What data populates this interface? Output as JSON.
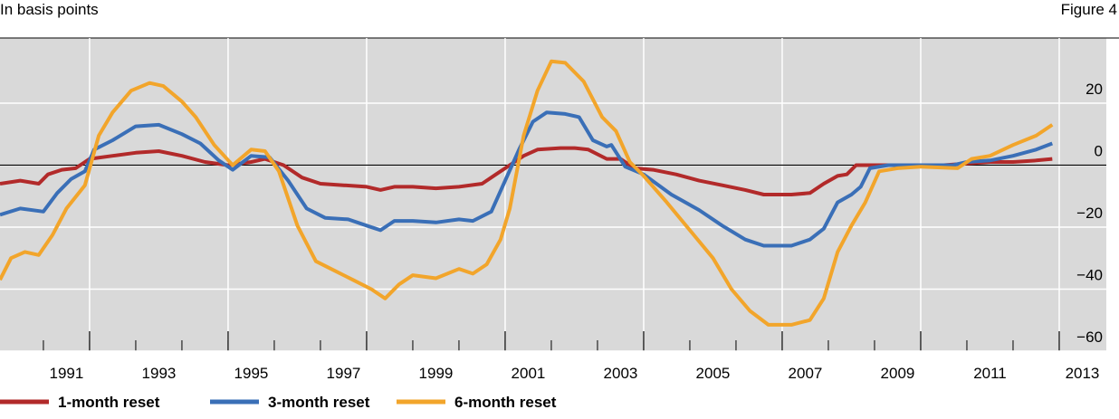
{
  "chart_data": {
    "type": "line",
    "subtitle": "In basis points",
    "figure_label": "Figure 4",
    "xlim": [
      1990.06,
      2014.02
    ],
    "ylim": [
      -60,
      41
    ],
    "yticks": [
      20,
      0,
      {
        "value": -20,
        "label": "−20"
      },
      {
        "value": -40,
        "label": "−40"
      },
      {
        "value": -60,
        "label": "−60"
      }
    ],
    "xticks": [
      {
        "value": 1991.5,
        "label": "1991"
      },
      {
        "value": 1993.5,
        "label": "1993"
      },
      {
        "value": 1995.5,
        "label": "1995"
      },
      {
        "value": 1997.5,
        "label": "1997"
      },
      {
        "value": 1999.5,
        "label": "1999"
      },
      {
        "value": 2001.5,
        "label": "2001"
      },
      {
        "value": 2003.5,
        "label": "2003"
      },
      {
        "value": 2005.5,
        "label": "2005"
      },
      {
        "value": 2007.5,
        "label": "2007"
      },
      {
        "value": 2009.5,
        "label": "2009"
      },
      {
        "value": 2011.5,
        "label": "2011"
      },
      {
        "value": 2013.5,
        "label": "2013"
      }
    ],
    "xminorticks": [
      1991,
      1992,
      1993,
      1994,
      1995,
      1996,
      1997,
      1998,
      1999,
      2000,
      2001,
      2002,
      2003,
      2004,
      2005,
      2006,
      2007,
      2008,
      2009,
      2010,
      2011,
      2012,
      2013
    ],
    "xgrid": [
      1992,
      1995,
      1998,
      2001,
      2004,
      2007,
      2010,
      2013
    ],
    "grid": true,
    "zero_line": 0,
    "series": [
      {
        "name": "1-month reset",
        "color": "#b22a2a",
        "x": [
          1990.06,
          1990.5,
          1990.9,
          1991.1,
          1991.4,
          1991.7,
          1992.0,
          1992.5,
          1993.0,
          1993.5,
          1994.0,
          1994.5,
          1995.0,
          1995.5,
          1995.8,
          1996.2,
          1996.6,
          1997.0,
          1997.5,
          1998.0,
          1998.3,
          1998.6,
          1999.0,
          1999.5,
          2000.0,
          2000.5,
          2000.8,
          2001.1,
          2001.4,
          2001.7,
          2002.2,
          2002.5,
          2002.8,
          2003.2,
          2003.5,
          2003.8,
          2004.2,
          2004.7,
          2005.2,
          2005.7,
          2006.2,
          2006.6,
          2007.2,
          2007.6,
          2007.9,
          2008.2,
          2008.4,
          2008.6,
          2009.0,
          2010.0,
          2010.5,
          2011.0,
          2011.5,
          2012.0,
          2012.5,
          2012.85
        ],
        "values": [
          -6,
          -5,
          -6,
          -3,
          -1.5,
          -1,
          2,
          3,
          4,
          4.5,
          3,
          1,
          0,
          1,
          2,
          0,
          -4,
          -6,
          -6.5,
          -7,
          -8,
          -7,
          -7,
          -7.5,
          -7,
          -6,
          -3,
          0,
          3,
          5,
          5.5,
          5.5,
          5,
          2,
          2,
          -1,
          -1.5,
          -3,
          -5,
          -6.5,
          -8,
          -9.5,
          -9.5,
          -9,
          -6,
          -3.5,
          -3,
          0,
          0,
          0,
          0,
          0.5,
          1,
          1,
          1.5,
          2
        ]
      },
      {
        "name": "3-month reset",
        "color": "#3a6fb7",
        "x": [
          1990.06,
          1990.5,
          1991.0,
          1991.3,
          1991.6,
          1991.9,
          1992.1,
          1992.5,
          1993.0,
          1993.5,
          1994.0,
          1994.4,
          1994.8,
          1995.1,
          1995.5,
          1995.9,
          1996.3,
          1996.7,
          1997.1,
          1997.6,
          1998.0,
          1998.3,
          1998.6,
          1999.0,
          1999.5,
          2000.0,
          2000.3,
          2000.7,
          2001.0,
          2001.3,
          2001.6,
          2001.9,
          2002.3,
          2002.6,
          2002.9,
          2003.2,
          2003.3,
          2003.6,
          2004.0,
          2004.6,
          2005.2,
          2005.7,
          2006.2,
          2006.6,
          2007.2,
          2007.6,
          2007.9,
          2008.2,
          2008.5,
          2008.7,
          2008.9,
          2009.3,
          2010.0,
          2010.7,
          2011.0,
          2011.5,
          2012.0,
          2012.5,
          2012.85
        ],
        "values": [
          -16,
          -14,
          -15,
          -9,
          -4.5,
          -2,
          5,
          8,
          12.5,
          13,
          10,
          7,
          1.5,
          -1.5,
          3,
          2.5,
          -5,
          -14,
          -17,
          -17.5,
          -19.5,
          -21,
          -18,
          -18,
          -18.5,
          -17.5,
          -18,
          -15,
          -5,
          5,
          14,
          17,
          16.5,
          15.5,
          8,
          6,
          6.5,
          -0.5,
          -3,
          -9.5,
          -14.5,
          -19.5,
          -24,
          -26,
          -26,
          -24,
          -20.5,
          -12,
          -9.5,
          -7,
          -1,
          0,
          0,
          0,
          1,
          1.5,
          3,
          5,
          7
        ]
      },
      {
        "name": "6-month reset",
        "color": "#f2a52b",
        "x": [
          1990.06,
          1990.3,
          1990.6,
          1990.9,
          1991.2,
          1991.5,
          1991.9,
          1992.2,
          1992.5,
          1992.9,
          1993.3,
          1993.6,
          1994.0,
          1994.3,
          1994.7,
          1995.1,
          1995.5,
          1995.8,
          1996.1,
          1996.5,
          1996.9,
          1997.3,
          1997.7,
          1998.1,
          1998.4,
          1998.7,
          1999.0,
          1999.5,
          2000.0,
          2000.3,
          2000.6,
          2000.9,
          2001.1,
          2001.4,
          2001.7,
          2002.0,
          2002.3,
          2002.7,
          2003.1,
          2003.4,
          2003.7,
          2004.0,
          2004.5,
          2005.0,
          2005.5,
          2005.9,
          2006.3,
          2006.7,
          2007.2,
          2007.6,
          2007.9,
          2008.2,
          2008.5,
          2008.8,
          2009.1,
          2009.5,
          2010.0,
          2010.8,
          2011.1,
          2011.5,
          2012.0,
          2012.5,
          2012.85
        ],
        "values": [
          -37,
          -30,
          -28,
          -29,
          -22.5,
          -14,
          -6.5,
          9.5,
          17,
          24,
          26.5,
          25.5,
          20.5,
          15.5,
          6.5,
          0,
          5,
          4.5,
          -2,
          -19.5,
          -31,
          -34,
          -37,
          -40,
          -43,
          -38.5,
          -35.5,
          -36.5,
          -33.5,
          -35,
          -32,
          -24,
          -14,
          9.5,
          24,
          33.5,
          33,
          27,
          15.5,
          11,
          1,
          -3.5,
          -12,
          -21,
          -30,
          -40,
          -47,
          -51.5,
          -51.5,
          -50,
          -43,
          -28,
          -19.5,
          -12,
          -2,
          -1,
          -0.5,
          -1,
          2,
          3,
          6.5,
          9.5,
          13
        ]
      }
    ]
  }
}
